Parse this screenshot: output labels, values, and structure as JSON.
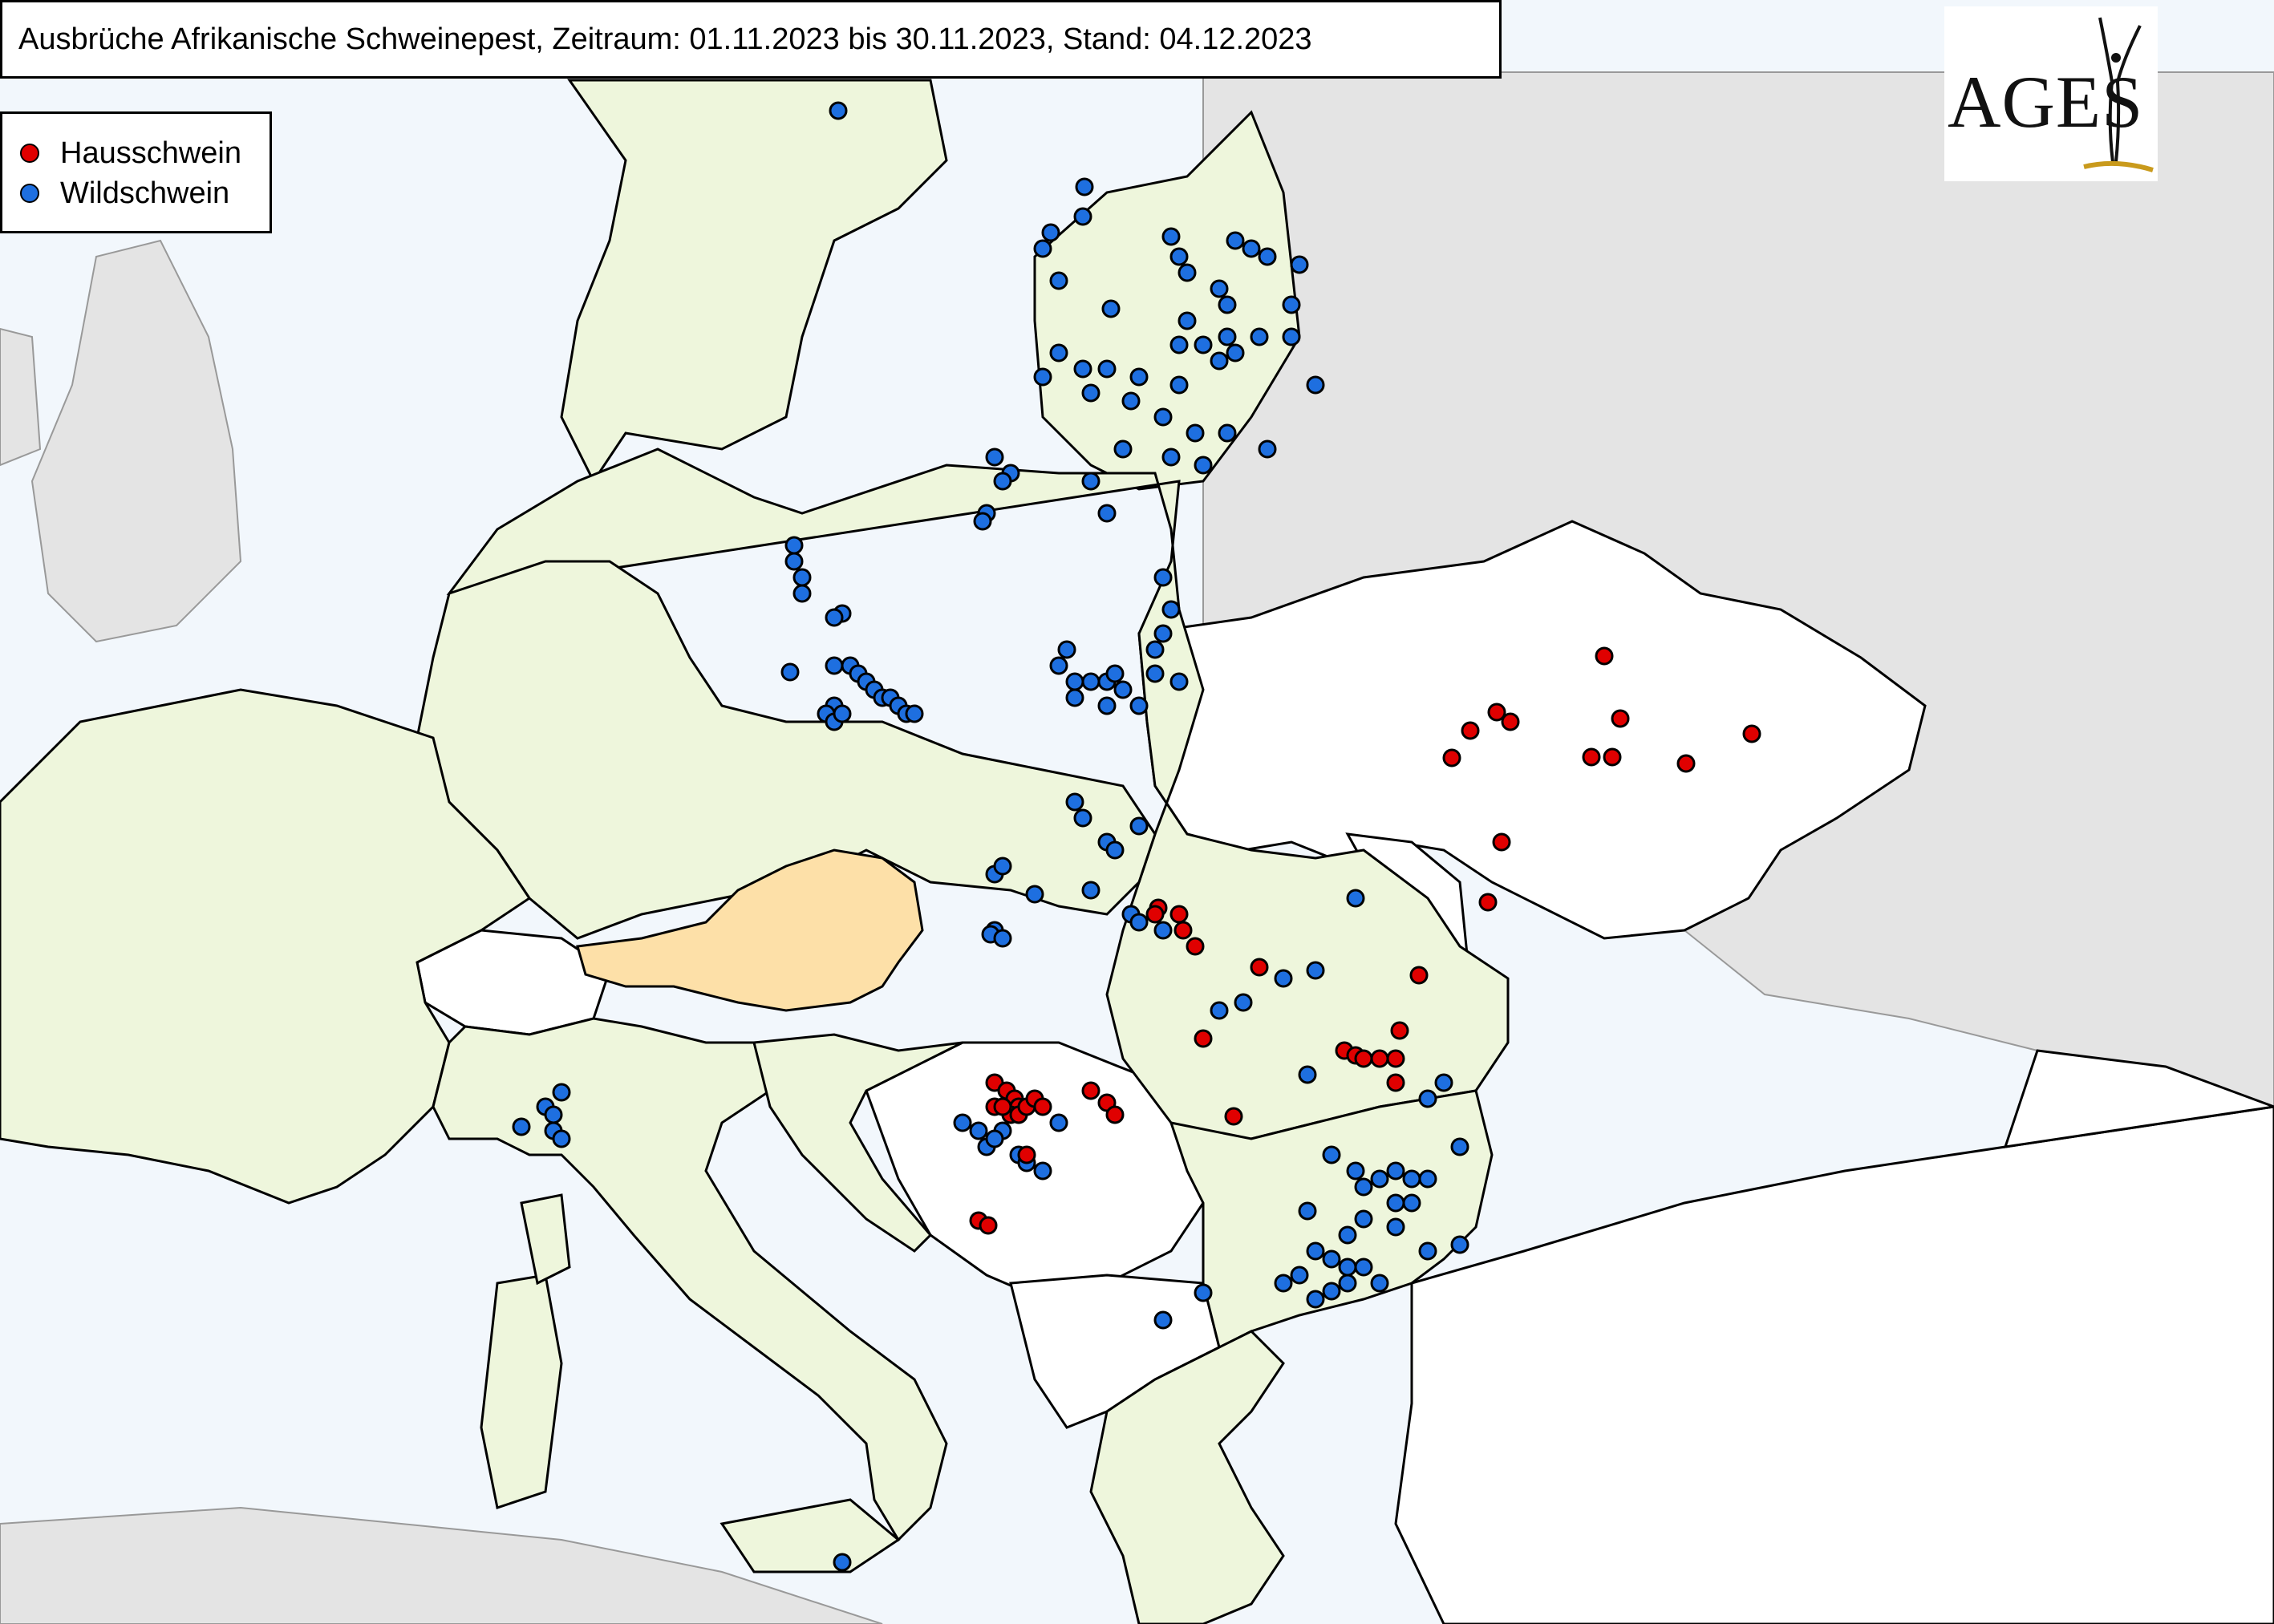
{
  "title": "Ausbrüche Afrikanische Schweinepest, Zeitraum: 01.11.2023 bis 30.11.2023, Stand: 04.12.2023",
  "legend": {
    "items": [
      {
        "label": "Hausschwein",
        "color": "#e00000"
      },
      {
        "label": "Wildschwein",
        "color": "#1e6fe0"
      }
    ]
  },
  "logo": {
    "text": "AGES"
  },
  "colors": {
    "sea": "#f2f7fc",
    "affected_country": "#eef6dc",
    "austria": "#fde0a8",
    "unaffected_country": "#ffffff",
    "outside_region": "#e4e4e4",
    "border": "#000000"
  }
}
